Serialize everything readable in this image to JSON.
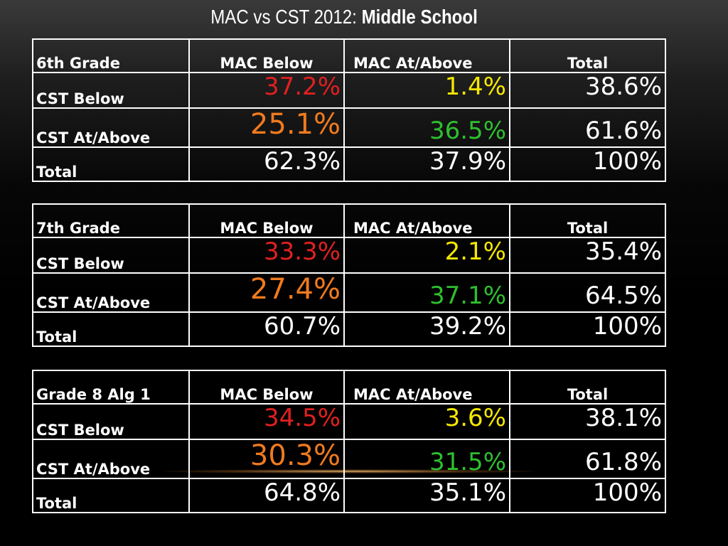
{
  "title": {
    "prefix": "MAC vs CST 2012: ",
    "bold": "Middle School"
  },
  "headers": {
    "mac_below": "MAC Below",
    "mac_at_above": "MAC At/Above",
    "total": "Total"
  },
  "row_labels": {
    "cst_below": "CST Below",
    "cst_at_above": "CST At/Above",
    "total": "Total"
  },
  "colors": {
    "red": "#e02020",
    "yellow": "#f5e800",
    "orange": "#f07a1e",
    "green": "#2fbf2f",
    "white": "#ffffff"
  },
  "tables": [
    {
      "grade": "6th Grade",
      "cst_below": [
        "37.2%",
        "1.4%",
        "38.6%"
      ],
      "cst_at_above": [
        "25.1%",
        "36.5%",
        "61.6%"
      ],
      "total": [
        "62.3%",
        "37.9%",
        "100%"
      ]
    },
    {
      "grade": "7th Grade",
      "cst_below": [
        "33.3%",
        "2.1%",
        "35.4%"
      ],
      "cst_at_above": [
        "27.4%",
        "37.1%",
        "64.5%"
      ],
      "total": [
        "60.7%",
        "39.2%",
        "100%"
      ]
    },
    {
      "grade": "Grade 8 Alg 1",
      "cst_below": [
        "34.5%",
        "3.6%",
        "38.1%"
      ],
      "cst_at_above": [
        "30.3%",
        "31.5%",
        "61.8%"
      ],
      "total": [
        "64.8%",
        "35.1%",
        "100%"
      ]
    }
  ]
}
